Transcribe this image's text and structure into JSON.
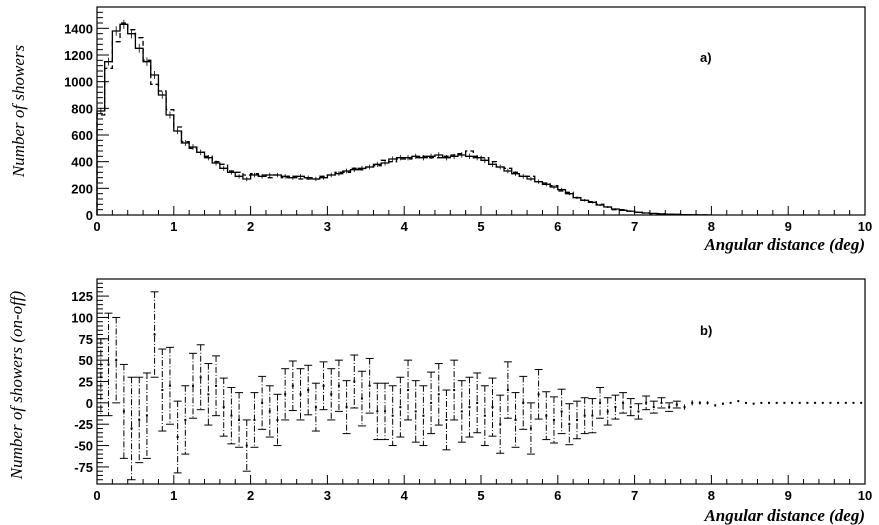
{
  "chart_data": [
    {
      "panel": "a",
      "type": "line",
      "annotation": "a)",
      "xlabel": "Angular distance (deg)",
      "ylabel": "Number of showers",
      "xlim": [
        0,
        10
      ],
      "ylim": [
        0,
        1560
      ],
      "xticks": [
        0,
        1,
        2,
        3,
        4,
        5,
        6,
        7,
        8,
        9,
        10
      ],
      "yticks": [
        0,
        200,
        400,
        600,
        800,
        1000,
        1200,
        1400
      ],
      "bin_width": 0.1,
      "x": [
        0.05,
        0.15,
        0.25,
        0.35,
        0.45,
        0.55,
        0.65,
        0.75,
        0.85,
        0.95,
        1.05,
        1.15,
        1.25,
        1.35,
        1.45,
        1.55,
        1.65,
        1.75,
        1.85,
        1.95,
        2.05,
        2.15,
        2.25,
        2.35,
        2.45,
        2.55,
        2.65,
        2.75,
        2.85,
        2.95,
        3.05,
        3.15,
        3.25,
        3.35,
        3.45,
        3.55,
        3.65,
        3.75,
        3.85,
        3.95,
        4.05,
        4.15,
        4.25,
        4.35,
        4.45,
        4.55,
        4.65,
        4.75,
        4.85,
        4.95,
        5.05,
        5.15,
        5.25,
        5.35,
        5.45,
        5.55,
        5.65,
        5.75,
        5.85,
        5.95,
        6.05,
        6.15,
        6.25,
        6.35,
        6.45,
        6.55,
        6.65,
        6.75,
        6.85,
        6.95,
        7.05,
        7.15,
        7.25,
        7.35,
        7.45,
        7.55,
        7.65,
        7.75,
        7.85,
        7.95
      ],
      "series": [
        {
          "name": "",
          "style": "solid",
          "values": [
            780,
            1150,
            1380,
            1430,
            1360,
            1250,
            1150,
            1050,
            900,
            750,
            630,
            540,
            510,
            470,
            430,
            390,
            350,
            320,
            290,
            270,
            300,
            290,
            300,
            300,
            290,
            280,
            290,
            280,
            270,
            280,
            300,
            310,
            330,
            340,
            350,
            360,
            380,
            390,
            420,
            430,
            430,
            440,
            430,
            440,
            450,
            430,
            440,
            450,
            440,
            430,
            410,
            380,
            360,
            330,
            310,
            290,
            270,
            250,
            230,
            210,
            190,
            160,
            130,
            110,
            95,
            75,
            60,
            45,
            35,
            28,
            20,
            15,
            12,
            8,
            6,
            5,
            3,
            2,
            1,
            1
          ],
          "errors": [
            25,
            30,
            35,
            35,
            35,
            33,
            32,
            30,
            28,
            26,
            24,
            22,
            22,
            21,
            20,
            19,
            18,
            17,
            17,
            16,
            17,
            17,
            17,
            17,
            17,
            16,
            17,
            16,
            16,
            16,
            17,
            17,
            18,
            18,
            18,
            18,
            19,
            19,
            20,
            20,
            20,
            20,
            20,
            20,
            21,
            20,
            20,
            21,
            20,
            20,
            20,
            19,
            19,
            18,
            17,
            17,
            16,
            16,
            15,
            14,
            14,
            12,
            11,
            10,
            9,
            8,
            7,
            6,
            5,
            5,
            4,
            3,
            3,
            2,
            2,
            2,
            1,
            1,
            1,
            1
          ]
        },
        {
          "name": "",
          "style": "dashed",
          "values": [
            750,
            1100,
            1300,
            1440,
            1390,
            1330,
            1160,
            980,
            930,
            790,
            660,
            550,
            500,
            470,
            440,
            400,
            380,
            330,
            320,
            300,
            310,
            300,
            280,
            300,
            280,
            290,
            270,
            270,
            270,
            290,
            300,
            320,
            320,
            350,
            340,
            360,
            370,
            410,
            400,
            420,
            420,
            430,
            440,
            430,
            430,
            440,
            450,
            460,
            480,
            440,
            430,
            400,
            360,
            350,
            320,
            290,
            290,
            250,
            240,
            220,
            180,
            170,
            130,
            110,
            100,
            80,
            60,
            40,
            40,
            30,
            20,
            15,
            10,
            9,
            6,
            4,
            3,
            2,
            1,
            1
          ]
        }
      ]
    },
    {
      "panel": "b",
      "type": "scatter",
      "annotation": "b)",
      "xlabel": "Angular distance (deg)",
      "ylabel": "Number of showers (on-off)",
      "xlim": [
        0,
        10
      ],
      "ylim": [
        -95,
        145
      ],
      "xticks": [
        0,
        1,
        2,
        3,
        4,
        5,
        6,
        7,
        8,
        9,
        10
      ],
      "yticks": [
        -75,
        -50,
        -25,
        0,
        25,
        50,
        75,
        100,
        125
      ],
      "x": [
        0.05,
        0.15,
        0.25,
        0.35,
        0.45,
        0.55,
        0.65,
        0.75,
        0.85,
        0.95,
        1.05,
        1.15,
        1.25,
        1.35,
        1.45,
        1.55,
        1.65,
        1.75,
        1.85,
        1.95,
        2.05,
        2.15,
        2.25,
        2.35,
        2.45,
        2.55,
        2.65,
        2.75,
        2.85,
        2.95,
        3.05,
        3.15,
        3.25,
        3.35,
        3.45,
        3.55,
        3.65,
        3.75,
        3.85,
        3.95,
        4.05,
        4.15,
        4.25,
        4.35,
        4.45,
        4.55,
        4.65,
        4.75,
        4.85,
        4.95,
        5.05,
        5.15,
        5.25,
        5.35,
        5.45,
        5.55,
        5.65,
        5.75,
        5.85,
        5.95,
        6.05,
        6.15,
        6.25,
        6.35,
        6.45,
        6.55,
        6.65,
        6.75,
        6.85,
        6.95,
        7.05,
        7.15,
        7.25,
        7.35,
        7.45,
        7.55,
        7.65,
        7.75,
        7.85,
        7.95,
        8.05,
        8.15,
        8.25,
        8.35,
        8.45,
        8.55,
        8.65,
        8.75,
        8.85,
        8.95,
        9.05,
        9.15,
        9.25,
        9.35,
        9.45,
        9.55,
        9.65,
        9.75,
        9.85,
        9.95
      ],
      "values": [
        30,
        45,
        50,
        -10,
        -30,
        -20,
        -15,
        80,
        15,
        20,
        -40,
        -20,
        20,
        30,
        10,
        20,
        -5,
        -15,
        -20,
        -50,
        -20,
        0,
        -10,
        -20,
        10,
        20,
        10,
        15,
        -5,
        20,
        10,
        20,
        -5,
        25,
        5,
        20,
        -10,
        -10,
        -15,
        -5,
        15,
        -10,
        -15,
        0,
        10,
        -20,
        15,
        -10,
        -5,
        0,
        -15,
        -5,
        -25,
        15,
        -20,
        0,
        -30,
        10,
        -15,
        -20,
        -10,
        -25,
        -20,
        -15,
        -15,
        0,
        -10,
        -5,
        0,
        -5,
        -10,
        0,
        -5,
        0,
        -5,
        -2,
        -5,
        0,
        0,
        0,
        -3,
        -1,
        0,
        2,
        0,
        -1,
        0,
        0,
        0,
        0,
        0,
        0,
        0,
        0,
        0,
        0,
        0,
        0,
        0,
        0
      ],
      "errors": [
        45,
        60,
        50,
        55,
        60,
        50,
        50,
        50,
        48,
        45,
        42,
        40,
        38,
        38,
        36,
        35,
        34,
        33,
        32,
        30,
        32,
        31,
        30,
        30,
        30,
        29,
        30,
        29,
        28,
        28,
        30,
        30,
        31,
        31,
        32,
        32,
        33,
        33,
        35,
        35,
        35,
        36,
        35,
        36,
        36,
        35,
        35,
        36,
        35,
        35,
        35,
        34,
        34,
        33,
        32,
        31,
        30,
        29,
        28,
        27,
        26,
        24,
        22,
        21,
        20,
        18,
        16,
        14,
        12,
        10,
        9,
        8,
        7,
        6,
        5,
        4,
        3,
        3,
        2,
        2,
        1.5,
        1.5,
        1,
        1,
        1,
        1,
        1,
        1,
        1,
        0.8,
        0.8,
        0.8,
        0.8,
        0.5,
        0.5,
        0.5,
        0.5,
        0.5,
        0.5,
        0.5
      ]
    }
  ]
}
